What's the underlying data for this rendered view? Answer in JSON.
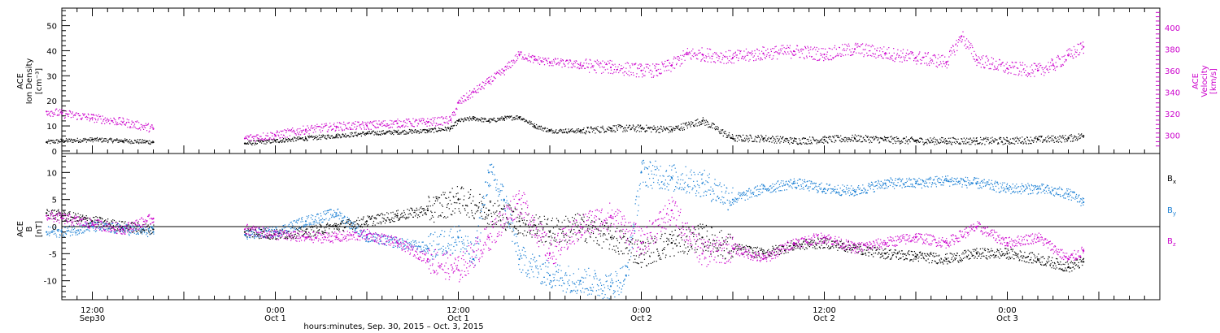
{
  "chart_data": [
    {
      "type": "scatter",
      "panel": "top",
      "ylabel_left": [
        "ACE",
        "Ion Density",
        "[cm⁻³]"
      ],
      "ylabel_right": [
        "ACE",
        "Velocity",
        "[km/s]"
      ],
      "ylim_left": [
        -1,
        57
      ],
      "ylim_right": [
        283,
        418
      ],
      "yticks_left": [
        0,
        10,
        20,
        30,
        40,
        50
      ],
      "yticks_right": [
        300,
        320,
        340,
        360,
        380,
        400
      ],
      "data_gap_hours": [
        [
          -8.0,
          -2.0
        ]
      ],
      "series": [
        {
          "name": "Density",
          "axis": "left",
          "color": "#000000",
          "x": [
            -15.0,
            -14.0,
            -12.0,
            -10.0,
            -8.0,
            -6.0,
            -4.0,
            -2.0,
            0.0,
            2.0,
            4.0,
            6.0,
            8.0,
            10.0,
            11.5,
            12.0,
            13.0,
            14.0,
            15.0,
            16.0,
            17.0,
            18.0,
            20.0,
            22.0,
            24.0,
            26.0,
            28.0,
            30.0,
            32.0,
            34.0,
            36.0,
            38.0,
            40.0,
            42.0,
            44.0,
            46.0,
            48.0,
            50.0,
            52.0,
            53.0
          ],
          "y": [
            3.5,
            4.0,
            4.5,
            4.0,
            3.5,
            3.0,
            3.0,
            3.0,
            4.0,
            5.0,
            6.0,
            7.0,
            7.5,
            8.0,
            9.0,
            12.0,
            13.0,
            12.0,
            13.0,
            13.5,
            10.0,
            8.0,
            8.0,
            9.0,
            9.0,
            8.5,
            12.0,
            5.0,
            5.0,
            4.0,
            4.5,
            5.0,
            4.5,
            4.0,
            4.0,
            4.0,
            4.0,
            4.5,
            5.0,
            6.0
          ]
        },
        {
          "name": "Velocity",
          "axis": "right",
          "color": "#cc00cc",
          "x": [
            -15.0,
            -14.0,
            -12.0,
            -10.0,
            -8.0,
            -6.0,
            -4.0,
            -2.0,
            0.0,
            2.0,
            4.0,
            6.0,
            8.0,
            10.0,
            11.5,
            12.0,
            13.0,
            14.0,
            15.0,
            16.0,
            17.0,
            18.0,
            20.0,
            22.0,
            24.0,
            25.0,
            26.0,
            27.0,
            28.0,
            30.0,
            32.0,
            34.0,
            36.0,
            38.0,
            40.0,
            42.0,
            44.0,
            45.0,
            46.0,
            48.0,
            50.0,
            51.0,
            52.0,
            53.0
          ],
          "y": [
            322,
            320,
            316,
            312,
            306,
            300,
            298,
            297,
            300,
            305,
            308,
            309,
            311,
            312,
            314,
            330,
            340,
            350,
            360,
            375,
            370,
            368,
            365,
            363,
            360,
            360,
            365,
            375,
            375,
            372,
            376,
            378,
            375,
            380,
            376,
            372,
            368,
            392,
            370,
            362,
            360,
            365,
            374,
            382
          ]
        }
      ]
    },
    {
      "type": "scatter",
      "panel": "bottom",
      "ylabel_left": [
        "ACE",
        "B",
        "[nT]"
      ],
      "ylim": [
        -13.5,
        13.5
      ],
      "yticks": [
        -10,
        -5,
        0,
        5,
        10
      ],
      "zero_line": true,
      "legend": [
        {
          "label": "B",
          "subscript": "x",
          "color": "#000000"
        },
        {
          "label": "B",
          "subscript": "y",
          "color": "#1a7fd4"
        },
        {
          "label": "B",
          "subscript": "z",
          "color": "#cc00cc"
        }
      ],
      "series": [
        {
          "name": "Bx",
          "color": "#000000",
          "x": [
            -15.0,
            -14.0,
            -12.0,
            -10.0,
            -8.0,
            -6.0,
            -4.0,
            -2.0,
            0.0,
            2.0,
            4.0,
            6.0,
            8.0,
            10.0,
            12.0,
            14.0,
            16.0,
            18.0,
            20.0,
            22.0,
            24.0,
            26.0,
            28.0,
            30.0,
            32.0,
            34.0,
            36.0,
            38.0,
            40.0,
            42.0,
            44.0,
            46.0,
            48.0,
            50.0,
            52.0,
            53.0
          ],
          "y": [
            2.5,
            2.0,
            1.0,
            0.0,
            -0.5,
            0.5,
            0.0,
            -1.0,
            -1.5,
            -1.0,
            0.0,
            1.0,
            2.0,
            3.0,
            5.0,
            3.0,
            1.0,
            -1.0,
            0.0,
            -2.0,
            -5.0,
            -3.0,
            -2.0,
            -4.0,
            -5.0,
            -3.5,
            -3.0,
            -4.0,
            -5.0,
            -5.5,
            -6.0,
            -5.0,
            -5.0,
            -6.0,
            -7.5,
            -6.5
          ]
        },
        {
          "name": "By",
          "color": "#1a7fd4",
          "x": [
            -15.0,
            -14.0,
            -12.0,
            -10.0,
            -8.0,
            -6.0,
            -4.0,
            -2.0,
            0.0,
            2.0,
            4.0,
            6.0,
            8.0,
            10.0,
            12.0,
            13.0,
            14.0,
            15.0,
            16.0,
            18.0,
            20.0,
            22.0,
            23.0,
            24.0,
            26.0,
            28.0,
            30.0,
            32.0,
            34.0,
            36.0,
            38.0,
            40.0,
            42.0,
            44.0,
            46.0,
            48.0,
            50.0,
            52.0,
            53.0
          ],
          "y": [
            -1.0,
            -1.0,
            0.0,
            -0.5,
            -1.0,
            -1.0,
            -1.5,
            -1.5,
            -1.0,
            1.0,
            2.5,
            -2.0,
            -3.0,
            -4.0,
            -2.0,
            -6.0,
            10.0,
            5.0,
            -6.0,
            -9.0,
            -10.0,
            -11.0,
            -9.0,
            10.0,
            9.0,
            8.0,
            5.0,
            7.0,
            8.0,
            7.0,
            6.5,
            8.0,
            8.0,
            8.5,
            8.0,
            7.0,
            7.0,
            6.0,
            4.5
          ]
        },
        {
          "name": "Bz",
          "color": "#cc00cc",
          "x": [
            -15.0,
            -14.0,
            -12.0,
            -10.0,
            -8.0,
            -6.0,
            -4.0,
            -2.0,
            0.0,
            2.0,
            4.0,
            6.0,
            8.0,
            10.0,
            12.0,
            14.0,
            16.0,
            18.0,
            20.0,
            22.0,
            24.0,
            26.0,
            28.0,
            30.0,
            32.0,
            34.0,
            36.0,
            38.0,
            40.0,
            42.0,
            44.0,
            46.0,
            48.0,
            50.0,
            52.0,
            53.0
          ],
          "y": [
            2.0,
            1.5,
            0.5,
            -0.5,
            1.5,
            0.0,
            0.5,
            -0.5,
            -1.5,
            -2.0,
            -2.0,
            -1.5,
            -3.0,
            -6.0,
            -8.0,
            -2.0,
            5.0,
            -5.0,
            0.0,
            2.0,
            -3.0,
            3.0,
            -5.0,
            -4.0,
            -6.0,
            -3.0,
            -2.0,
            -4.0,
            -3.0,
            -2.0,
            -3.0,
            0.0,
            -3.0,
            -2.0,
            -6.0,
            -4.5
          ]
        }
      ]
    }
  ],
  "x_axis": {
    "title": "hours:minutes, Sep. 30, 2015 – Oct.  3, 2015",
    "ticks": [
      {
        "hour": -12,
        "time": "12:00",
        "date": "Sep30"
      },
      {
        "hour": 0,
        "time": "0:00",
        "date": "Oct 1"
      },
      {
        "hour": 12,
        "time": "12:00",
        "date": "Oct 1"
      },
      {
        "hour": 24,
        "time": "0:00",
        "date": "Oct 2"
      },
      {
        "hour": 36,
        "time": "12:00",
        "date": "Oct 2"
      },
      {
        "hour": 48,
        "time": "0:00",
        "date": "Oct 3"
      }
    ],
    "range_hours": [
      -14.0,
      58.0
    ]
  }
}
